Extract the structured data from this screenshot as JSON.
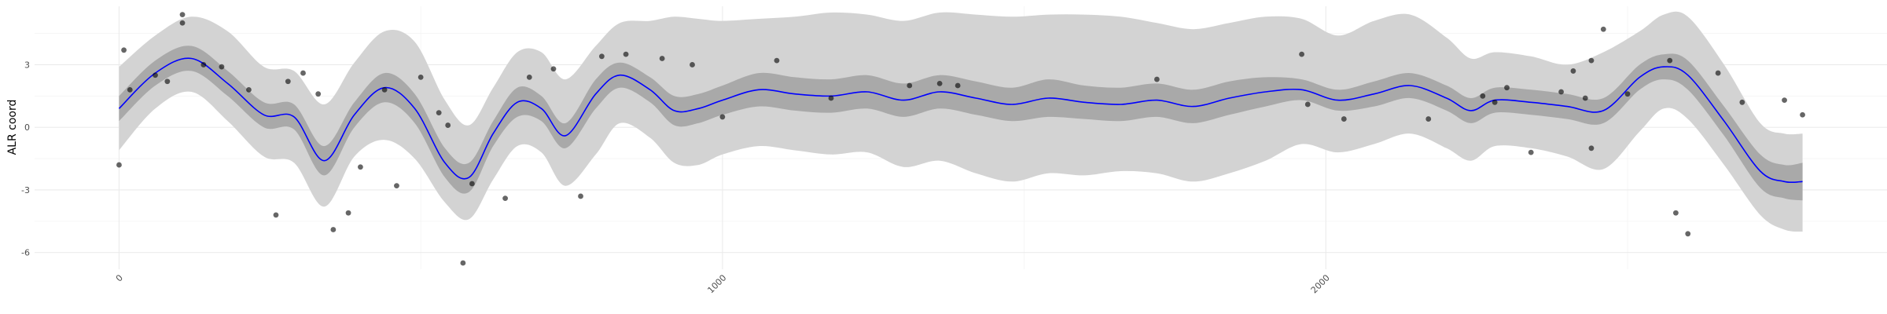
{
  "chart_data": {
    "type": "line",
    "title": "",
    "xlabel": "",
    "ylabel": "ALR coord",
    "xlim": [
      -140,
      2930
    ],
    "ylim": [
      -6.8,
      5.8
    ],
    "x_ticks": [
      0,
      1000,
      2000
    ],
    "x_minor_ticks": [
      500,
      1500,
      2500
    ],
    "y_ticks": [
      -6,
      -3,
      0,
      3
    ],
    "y_minor_ticks": [
      -4.5,
      -1.5,
      1.5,
      4.5
    ],
    "grid": true,
    "legend": "none",
    "colors": {
      "line": "#0000ff",
      "outer_band": "#d3d3d3",
      "inner_band": "#a9a9a9",
      "points": "#000000"
    },
    "series": [
      {
        "kind": "mean_line",
        "x": [
          0,
          60,
          120,
          180,
          240,
          290,
          340,
          390,
          440,
          490,
          540,
          580,
          620,
          660,
          700,
          740,
          790,
          830,
          880,
          920,
          960,
          1000,
          1060,
          1120,
          1180,
          1240,
          1300,
          1360,
          1420,
          1480,
          1540,
          1600,
          1660,
          1720,
          1780,
          1840,
          1900,
          1960,
          2020,
          2080,
          2140,
          2200,
          2240,
          2280,
          2340,
          2400,
          2460,
          2520,
          2560,
          2600,
          2660,
          2720,
          2760,
          2790
        ],
        "y": [
          0.9,
          2.6,
          3.3,
          2.1,
          0.6,
          0.5,
          -1.6,
          0.6,
          1.9,
          0.9,
          -1.7,
          -2.4,
          -0.3,
          1.2,
          0.9,
          -0.4,
          1.6,
          2.5,
          1.8,
          0.8,
          0.9,
          1.3,
          1.8,
          1.6,
          1.5,
          1.7,
          1.3,
          1.7,
          1.4,
          1.1,
          1.4,
          1.2,
          1.1,
          1.3,
          1.0,
          1.4,
          1.7,
          1.8,
          1.3,
          1.6,
          2.0,
          1.4,
          0.8,
          1.3,
          1.2,
          1.0,
          0.8,
          2.4,
          2.9,
          2.5,
          0.3,
          -2.1,
          -2.6,
          -2.6
        ]
      },
      {
        "kind": "inner_band",
        "x": [
          0,
          60,
          120,
          180,
          240,
          290,
          340,
          390,
          440,
          490,
          540,
          580,
          620,
          660,
          700,
          740,
          790,
          830,
          880,
          920,
          960,
          1000,
          1060,
          1120,
          1180,
          1240,
          1300,
          1360,
          1420,
          1480,
          1540,
          1600,
          1660,
          1720,
          1780,
          1840,
          1900,
          1960,
          2020,
          2080,
          2140,
          2200,
          2240,
          2280,
          2340,
          2400,
          2460,
          2520,
          2560,
          2600,
          2660,
          2720,
          2760,
          2790
        ],
        "lower": [
          0.3,
          2.0,
          2.7,
          1.5,
          0.0,
          -0.1,
          -2.3,
          0.0,
          1.2,
          0.2,
          -2.4,
          -3.1,
          -0.9,
          0.5,
          0.3,
          -1.0,
          0.9,
          1.9,
          1.2,
          0.1,
          0.2,
          0.6,
          1.0,
          0.8,
          0.7,
          0.9,
          0.5,
          0.9,
          0.6,
          0.3,
          0.5,
          0.4,
          0.3,
          0.5,
          0.2,
          0.6,
          1.0,
          1.3,
          0.8,
          1.0,
          1.4,
          0.8,
          0.2,
          0.7,
          0.6,
          0.4,
          0.2,
          1.8,
          2.3,
          1.8,
          -0.4,
          -2.9,
          -3.4,
          -3.5
        ],
        "upper": [
          1.5,
          3.2,
          3.9,
          2.7,
          1.2,
          1.1,
          -0.9,
          1.2,
          2.6,
          1.6,
          -1.0,
          -1.7,
          0.3,
          1.9,
          1.5,
          0.2,
          2.3,
          3.1,
          2.4,
          1.5,
          1.6,
          2.0,
          2.6,
          2.4,
          2.3,
          2.5,
          2.1,
          2.5,
          2.2,
          1.9,
          2.3,
          2.0,
          1.9,
          2.1,
          1.8,
          2.2,
          2.4,
          2.3,
          1.8,
          2.2,
          2.6,
          2.0,
          1.4,
          1.9,
          1.8,
          1.6,
          1.4,
          3.0,
          3.5,
          3.2,
          1.0,
          -1.3,
          -1.8,
          -1.7
        ]
      },
      {
        "kind": "outer_band",
        "x": [
          0,
          60,
          120,
          180,
          240,
          290,
          340,
          390,
          440,
          490,
          540,
          580,
          620,
          660,
          700,
          740,
          790,
          830,
          880,
          920,
          960,
          1000,
          1060,
          1120,
          1180,
          1240,
          1300,
          1360,
          1420,
          1480,
          1540,
          1600,
          1660,
          1720,
          1780,
          1840,
          1900,
          1960,
          2020,
          2080,
          2140,
          2200,
          2240,
          2280,
          2340,
          2400,
          2460,
          2520,
          2560,
          2600,
          2660,
          2720,
          2760,
          2790
        ],
        "lower": [
          -1.1,
          0.9,
          1.7,
          0.3,
          -1.4,
          -1.7,
          -3.8,
          -1.4,
          -0.6,
          -1.5,
          -3.6,
          -4.4,
          -2.5,
          -0.9,
          -1.2,
          -2.8,
          -1.3,
          0.2,
          -0.5,
          -1.7,
          -1.8,
          -1.3,
          -0.9,
          -1.1,
          -1.3,
          -1.2,
          -1.9,
          -1.6,
          -2.2,
          -2.6,
          -2.2,
          -2.3,
          -2.1,
          -2.2,
          -2.6,
          -2.2,
          -1.6,
          -0.8,
          -1.2,
          -0.8,
          -0.3,
          -1.0,
          -1.6,
          -0.9,
          -1.0,
          -1.4,
          -2.0,
          -0.2,
          0.9,
          0.4,
          -1.8,
          -4.2,
          -4.9,
          -5.0
        ],
        "upper": [
          2.9,
          4.4,
          5.3,
          4.6,
          2.9,
          2.7,
          1.1,
          3.1,
          4.6,
          4.1,
          1.3,
          0.1,
          1.9,
          3.6,
          3.6,
          2.3,
          3.9,
          5.0,
          5.1,
          5.3,
          5.2,
          5.1,
          5.2,
          5.3,
          5.5,
          5.4,
          5.1,
          5.5,
          5.4,
          5.3,
          5.4,
          5.4,
          5.3,
          5.0,
          4.7,
          5.0,
          5.3,
          5.2,
          4.4,
          5.1,
          5.4,
          4.3,
          3.3,
          3.6,
          3.4,
          3.0,
          3.6,
          4.6,
          5.4,
          5.3,
          3.0,
          0.2,
          -0.3,
          -0.3
        ]
      },
      {
        "kind": "points",
        "x": [
          0,
          18,
          8,
          60,
          80,
          105,
          105,
          140,
          170,
          215,
          260,
          280,
          305,
          330,
          355,
          380,
          400,
          440,
          460,
          500,
          530,
          545,
          570,
          585,
          640,
          680,
          720,
          765,
          800,
          840,
          900,
          950,
          1000,
          1090,
          1180,
          1310,
          1360,
          1390,
          1720,
          1960,
          1970,
          2030,
          2170,
          2260,
          2280,
          2300,
          2340,
          2390,
          2410,
          2430,
          2440,
          2440,
          2460,
          2500,
          2570,
          2580,
          2600,
          2650,
          2690,
          2760,
          2790
        ],
        "y": [
          -1.8,
          1.8,
          3.7,
          2.5,
          2.2,
          5.4,
          5.0,
          3.0,
          2.9,
          1.8,
          -4.2,
          2.2,
          2.6,
          1.6,
          -4.9,
          -4.1,
          -1.9,
          1.8,
          -2.8,
          2.4,
          0.7,
          0.1,
          -6.5,
          -2.7,
          -3.4,
          2.4,
          2.8,
          -3.3,
          3.4,
          3.5,
          3.3,
          3.0,
          0.5,
          3.2,
          1.4,
          2.0,
          2.1,
          2.0,
          2.3,
          3.5,
          1.1,
          0.4,
          0.4,
          1.5,
          1.2,
          1.9,
          -1.2,
          1.7,
          2.7,
          1.4,
          -1.0,
          3.2,
          4.7,
          1.6,
          3.2,
          -4.1,
          -5.1,
          2.6,
          1.2,
          1.3,
          0.6
        ]
      }
    ]
  }
}
